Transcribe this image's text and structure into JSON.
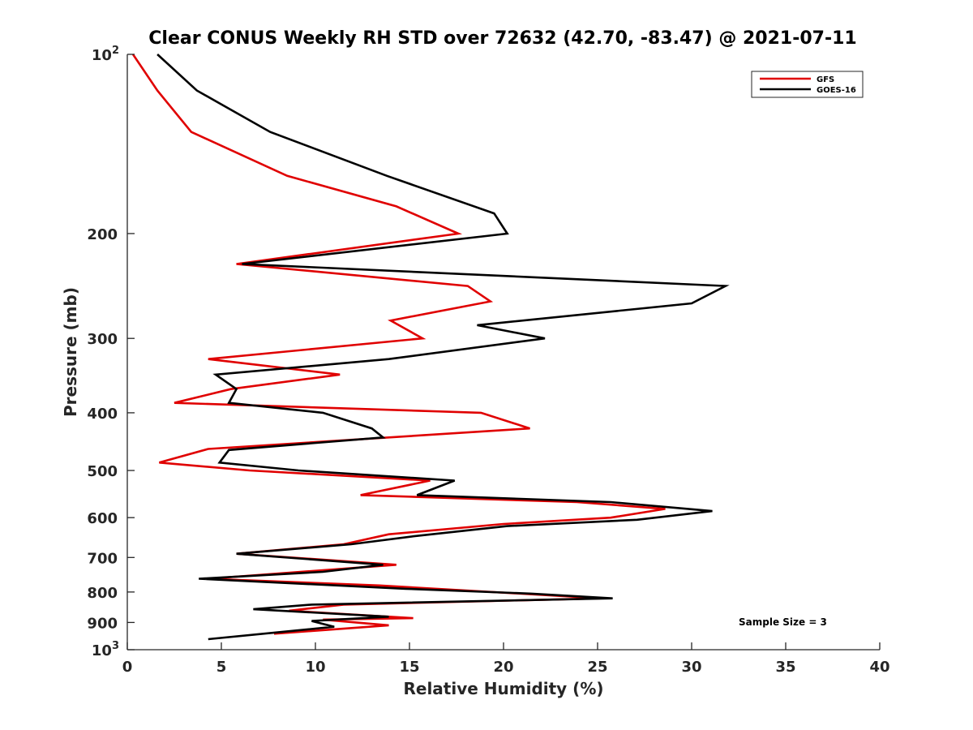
{
  "chart_data": {
    "type": "line",
    "title": "Clear CONUS Weekly RH STD over 72632 (42.70, -83.47) @ 2021-07-11",
    "xlabel": "Relative Humidity (%)",
    "ylabel": "Pressure (mb)",
    "xlim": [
      0,
      40
    ],
    "ylim": [
      100,
      1000
    ],
    "y_scale": "log",
    "y_reversed": true,
    "grid": false,
    "legend_position": "top-right",
    "x_ticks": [
      0,
      5,
      10,
      15,
      20,
      25,
      30,
      35,
      40
    ],
    "x_tick_labels": [
      "0",
      "5",
      "10",
      "15",
      "20",
      "25",
      "30",
      "35",
      "40"
    ],
    "y_ticks": [
      100,
      200,
      300,
      400,
      500,
      600,
      700,
      800,
      900,
      1000
    ],
    "y_tick_labels": [
      {
        "text": "10",
        "sup": "2"
      },
      {
        "text": "200",
        "sup": ""
      },
      {
        "text": "300",
        "sup": ""
      },
      {
        "text": "400",
        "sup": ""
      },
      {
        "text": "500",
        "sup": ""
      },
      {
        "text": "600",
        "sup": ""
      },
      {
        "text": "700",
        "sup": ""
      },
      {
        "text": "800",
        "sup": ""
      },
      {
        "text": "900",
        "sup": ""
      },
      {
        "text": "10",
        "sup": "3"
      }
    ],
    "annotation": "Sample Size = 3",
    "series": [
      {
        "name": "GFS",
        "color": "#e00000",
        "points": [
          {
            "x": 0.3,
            "y": 100
          },
          {
            "x": 1.6,
            "y": 115
          },
          {
            "x": 3.4,
            "y": 135
          },
          {
            "x": 8.5,
            "y": 160
          },
          {
            "x": 14.3,
            "y": 180
          },
          {
            "x": 17.6,
            "y": 200
          },
          {
            "x": 5.8,
            "y": 225
          },
          {
            "x": 18.1,
            "y": 245
          },
          {
            "x": 19.3,
            "y": 260
          },
          {
            "x": 14.0,
            "y": 280
          },
          {
            "x": 15.7,
            "y": 300
          },
          {
            "x": 4.3,
            "y": 325
          },
          {
            "x": 11.3,
            "y": 345
          },
          {
            "x": 5.5,
            "y": 365
          },
          {
            "x": 2.5,
            "y": 385
          },
          {
            "x": 18.8,
            "y": 400
          },
          {
            "x": 21.4,
            "y": 425
          },
          {
            "x": 4.3,
            "y": 460
          },
          {
            "x": 1.7,
            "y": 485
          },
          {
            "x": 6.5,
            "y": 500
          },
          {
            "x": 16.1,
            "y": 520
          },
          {
            "x": 12.4,
            "y": 550
          },
          {
            "x": 23.9,
            "y": 565
          },
          {
            "x": 28.6,
            "y": 580
          },
          {
            "x": 25.7,
            "y": 600
          },
          {
            "x": 20.0,
            "y": 615
          },
          {
            "x": 13.9,
            "y": 640
          },
          {
            "x": 11.5,
            "y": 665
          },
          {
            "x": 5.8,
            "y": 690
          },
          {
            "x": 14.3,
            "y": 720
          },
          {
            "x": 4.3,
            "y": 760
          },
          {
            "x": 13.4,
            "y": 780
          },
          {
            "x": 25.2,
            "y": 820
          },
          {
            "x": 11.5,
            "y": 840
          },
          {
            "x": 8.6,
            "y": 860
          },
          {
            "x": 15.2,
            "y": 885
          },
          {
            "x": 10.4,
            "y": 890
          },
          {
            "x": 13.9,
            "y": 910
          },
          {
            "x": 7.8,
            "y": 940
          }
        ]
      },
      {
        "name": "GOES-16",
        "color": "#000000",
        "points": [
          {
            "x": 1.6,
            "y": 100
          },
          {
            "x": 3.7,
            "y": 115
          },
          {
            "x": 7.6,
            "y": 135
          },
          {
            "x": 13.8,
            "y": 160
          },
          {
            "x": 19.5,
            "y": 185
          },
          {
            "x": 20.2,
            "y": 200
          },
          {
            "x": 6.1,
            "y": 225
          },
          {
            "x": 31.8,
            "y": 245
          },
          {
            "x": 30.0,
            "y": 262
          },
          {
            "x": 18.6,
            "y": 285
          },
          {
            "x": 22.2,
            "y": 300
          },
          {
            "x": 13.9,
            "y": 325
          },
          {
            "x": 4.7,
            "y": 345
          },
          {
            "x": 5.8,
            "y": 365
          },
          {
            "x": 5.4,
            "y": 385
          },
          {
            "x": 10.4,
            "y": 400
          },
          {
            "x": 13.0,
            "y": 425
          },
          {
            "x": 13.6,
            "y": 440
          },
          {
            "x": 5.4,
            "y": 462
          },
          {
            "x": 4.9,
            "y": 485
          },
          {
            "x": 9.1,
            "y": 500
          },
          {
            "x": 17.4,
            "y": 520
          },
          {
            "x": 15.4,
            "y": 550
          },
          {
            "x": 25.7,
            "y": 565
          },
          {
            "x": 31.1,
            "y": 585
          },
          {
            "x": 27.1,
            "y": 605
          },
          {
            "x": 20.2,
            "y": 620
          },
          {
            "x": 15.2,
            "y": 645
          },
          {
            "x": 11.9,
            "y": 665
          },
          {
            "x": 5.8,
            "y": 690
          },
          {
            "x": 13.6,
            "y": 720
          },
          {
            "x": 10.4,
            "y": 740
          },
          {
            "x": 3.8,
            "y": 760
          },
          {
            "x": 14.8,
            "y": 790
          },
          {
            "x": 21.5,
            "y": 805
          },
          {
            "x": 25.8,
            "y": 820
          },
          {
            "x": 9.8,
            "y": 840
          },
          {
            "x": 6.7,
            "y": 855
          },
          {
            "x": 13.9,
            "y": 880
          },
          {
            "x": 9.8,
            "y": 895
          },
          {
            "x": 11.0,
            "y": 915
          },
          {
            "x": 8.0,
            "y": 935
          },
          {
            "x": 4.3,
            "y": 960
          }
        ]
      }
    ]
  }
}
